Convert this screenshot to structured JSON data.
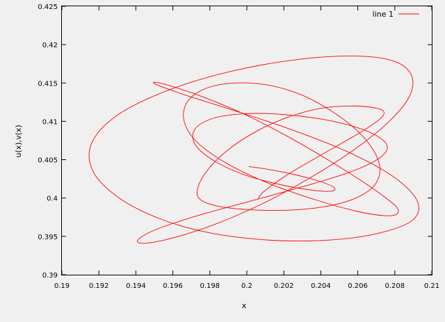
{
  "chart_data": {
    "type": "line",
    "title": "",
    "xlabel": "x",
    "ylabel": "u(x),v(x)",
    "xlim": [
      0.19,
      0.21
    ],
    "ylim": [
      0.39,
      0.425
    ],
    "x_ticks": [
      0.19,
      0.192,
      0.194,
      0.196,
      0.198,
      0.2,
      0.202,
      0.204,
      0.206,
      0.208,
      0.21
    ],
    "x_tick_labels": [
      "0.19",
      "0.192",
      "0.194",
      "0.196",
      "0.198",
      "0.2",
      "0.202",
      "0.204",
      "0.206",
      "0.208",
      "0.21"
    ],
    "y_ticks": [
      0.39,
      0.395,
      0.4,
      0.405,
      0.41,
      0.415,
      0.42,
      0.425
    ],
    "y_tick_labels": [
      "0.39",
      "0.395",
      "0.4",
      "0.405",
      "0.41",
      "0.415",
      "0.42",
      "0.425"
    ],
    "grid": false,
    "legend": "top-right",
    "series": [
      {
        "name": "line 1",
        "color": "#ff0000",
        "x": [
          0.2006,
          0.2009,
          0.2023,
          0.2043,
          0.2061,
          0.2072,
          0.2074,
          0.2068,
          0.2056,
          0.204,
          0.2023,
          0.2006,
          0.1991,
          0.198,
          0.1974,
          0.1974,
          0.1983,
          0.2,
          0.202,
          0.204,
          0.2057,
          0.2068,
          0.2072,
          0.2069,
          0.206,
          0.2046,
          0.203,
          0.2012,
          0.1994,
          0.1978,
          0.1968,
          0.1966,
          0.1973,
          0.199,
          0.2013,
          0.2038,
          0.2059,
          0.2074,
          0.2081,
          0.2081,
          0.2073,
          0.2059,
          0.2041,
          0.202,
          0.1998,
          0.1976,
          0.1959,
          0.195,
          0.1952,
          0.1967,
          0.1992,
          0.2022,
          0.2051,
          0.2074,
          0.2088,
          0.2093,
          0.2089,
          0.2076,
          0.2057,
          0.2033,
          0.2007,
          0.1979,
          0.1953,
          0.1931,
          0.1917,
          0.1916,
          0.193,
          0.1958,
          0.1993,
          0.2029,
          0.206,
          0.208,
          0.2089,
          0.2088,
          0.2077,
          0.2058,
          0.2034,
          0.2008,
          0.1982,
          0.196,
          0.1945,
          0.1941,
          0.195,
          0.1972,
          0.2002,
          0.2032,
          0.2056,
          0.2071,
          0.2076,
          0.2071,
          0.2058,
          0.204,
          0.2019,
          0.1999,
          0.1982,
          0.1972,
          0.1972,
          0.1982,
          0.1999,
          0.2019,
          0.2036,
          0.2046,
          0.2047,
          0.2039,
          0.2025,
          0.201,
          0.2001
        ],
        "y": [
          0.3998,
          0.4008,
          0.4032,
          0.406,
          0.4085,
          0.4103,
          0.4113,
          0.4118,
          0.412,
          0.4117,
          0.4106,
          0.4088,
          0.4065,
          0.404,
          0.4017,
          0.4,
          0.399,
          0.3985,
          0.3984,
          0.3988,
          0.3998,
          0.4014,
          0.4035,
          0.406,
          0.4087,
          0.4113,
          0.4134,
          0.4147,
          0.415,
          0.4143,
          0.4126,
          0.4101,
          0.4073,
          0.4044,
          0.4018,
          0.3997,
          0.3983,
          0.3977,
          0.3979,
          0.3988,
          0.4004,
          0.4027,
          0.4054,
          0.4083,
          0.411,
          0.4132,
          0.4146,
          0.4151,
          0.4147,
          0.4134,
          0.4115,
          0.4091,
          0.4064,
          0.4036,
          0.401,
          0.3988,
          0.397,
          0.3957,
          0.3948,
          0.3944,
          0.3946,
          0.3955,
          0.3973,
          0.4,
          0.4034,
          0.4071,
          0.4108,
          0.4141,
          0.4166,
          0.4181,
          0.4185,
          0.4178,
          0.416,
          0.4133,
          0.41,
          0.4063,
          0.4026,
          0.3992,
          0.3965,
          0.3948,
          0.3941,
          0.3945,
          0.3958,
          0.3976,
          0.3996,
          0.4016,
          0.4034,
          0.4051,
          0.4066,
          0.408,
          0.4093,
          0.4103,
          0.4109,
          0.411,
          0.4104,
          0.409,
          0.407,
          0.4049,
          0.403,
          0.4017,
          0.401,
          0.4009,
          0.4014,
          0.4022,
          0.4031,
          0.4038,
          0.4041
        ]
      }
    ]
  }
}
